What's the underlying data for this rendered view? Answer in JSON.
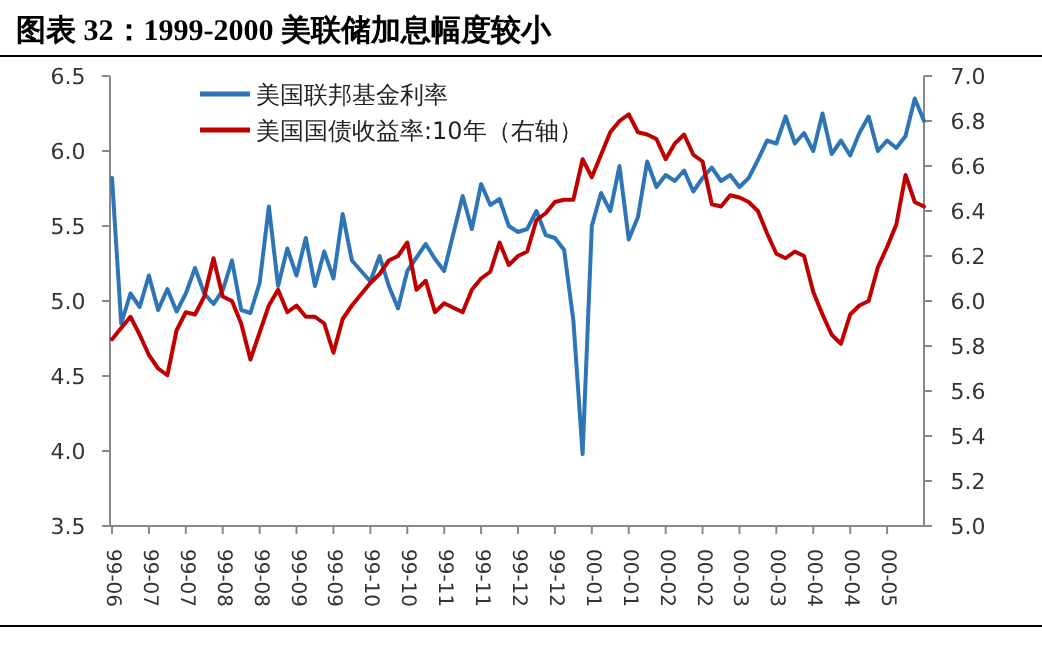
{
  "chart_data": {
    "type": "line",
    "title": "图表 32：1999-2000 美联储加息幅度较小",
    "categories": [
      "99-06",
      null,
      null,
      null,
      "99-07",
      null,
      null,
      null,
      "99-07",
      null,
      null,
      null,
      "99-08",
      null,
      null,
      null,
      "99-08",
      null,
      null,
      null,
      "99-09",
      null,
      null,
      null,
      "99-09",
      null,
      null,
      null,
      "99-10",
      null,
      null,
      null,
      "99-10",
      null,
      null,
      null,
      "99-11",
      null,
      null,
      null,
      "99-11",
      null,
      null,
      null,
      "99-12",
      null,
      null,
      null,
      "99-12",
      null,
      null,
      null,
      "00-01",
      null,
      null,
      null,
      "00-01",
      null,
      null,
      null,
      "00-02",
      null,
      null,
      null,
      "00-02",
      null,
      null,
      null,
      "00-03",
      null,
      null,
      null,
      "00-03",
      null,
      null,
      null,
      "00-04",
      null,
      null,
      null,
      "00-04",
      null,
      null,
      null,
      "00-05",
      null,
      null,
      null,
      null
    ],
    "series": [
      {
        "name": "美国联邦基金利率",
        "color": "#2e75b6",
        "values": [
          5.82,
          4.85,
          5.05,
          4.96,
          5.17,
          4.94,
          5.08,
          4.93,
          5.05,
          5.22,
          5.05,
          4.98,
          5.07,
          5.27,
          4.94,
          4.92,
          5.12,
          5.63,
          5.1,
          5.35,
          5.17,
          5.42,
          5.1,
          5.33,
          5.15,
          5.58,
          5.27,
          5.2,
          5.13,
          5.3,
          5.1,
          4.95,
          5.2,
          5.29,
          5.38,
          5.28,
          5.2,
          5.45,
          5.7,
          5.48,
          5.78,
          5.64,
          5.68,
          5.5,
          5.46,
          5.48,
          5.6,
          5.44,
          5.42,
          5.34,
          4.87,
          3.98,
          5.5,
          5.72,
          5.6,
          5.9,
          5.41,
          5.56,
          5.93,
          5.76,
          5.84,
          5.8,
          5.87,
          5.73,
          5.82,
          5.89,
          5.8,
          5.84,
          5.76,
          5.82,
          5.94,
          6.07,
          6.05,
          6.23,
          6.05,
          6.12,
          6.0,
          6.25,
          5.98,
          6.07,
          5.97,
          6.12,
          6.23,
          6.0,
          6.07,
          6.02,
          6.1,
          6.35,
          6.2
        ]
      },
      {
        "name": "美国国债收益率:10年（右轴）",
        "color": "#c00000",
        "axis": "y2",
        "values": [
          5.83,
          5.88,
          5.93,
          5.85,
          5.76,
          5.7,
          5.67,
          5.87,
          5.95,
          5.94,
          6.02,
          6.19,
          6.02,
          6.0,
          5.9,
          5.74,
          5.86,
          5.98,
          6.05,
          5.95,
          5.98,
          5.93,
          5.93,
          5.9,
          5.77,
          5.92,
          5.98,
          6.03,
          6.08,
          6.12,
          6.18,
          6.2,
          6.26,
          6.05,
          6.09,
          5.95,
          5.99,
          5.97,
          5.95,
          6.05,
          6.1,
          6.13,
          6.26,
          6.16,
          6.2,
          6.22,
          6.36,
          6.39,
          6.44,
          6.45,
          6.45,
          6.63,
          6.55,
          6.65,
          6.75,
          6.8,
          6.83,
          6.75,
          6.74,
          6.72,
          6.63,
          6.7,
          6.74,
          6.65,
          6.62,
          6.43,
          6.42,
          6.47,
          6.46,
          6.44,
          6.4,
          6.3,
          6.21,
          6.19,
          6.22,
          6.2,
          6.04,
          5.94,
          5.85,
          5.81,
          5.94,
          5.98,
          6.0,
          6.15,
          6.24,
          6.34,
          6.56,
          6.44,
          6.42
        ]
      }
    ],
    "ylim": [
      3.5,
      6.5
    ],
    "yticks": [
      {
        "value": 3.5,
        "label": "3.5"
      },
      {
        "value": 4,
        "label": "4.0"
      },
      {
        "value": 4.5,
        "label": "4.5"
      },
      {
        "value": 5,
        "label": "5.0"
      },
      {
        "value": 5.5,
        "label": "5.5"
      },
      {
        "value": 6,
        "label": "6.0"
      },
      {
        "value": 6.5,
        "label": "6.5"
      }
    ],
    "y2lim": [
      5.0,
      7.0
    ],
    "y2ticks": [
      {
        "value": 5,
        "label": "5.0"
      },
      {
        "value": 5.2,
        "label": "5.2"
      },
      {
        "value": 5.4,
        "label": "5.4"
      },
      {
        "value": 5.6,
        "label": "5.6"
      },
      {
        "value": 5.8,
        "label": "5.8"
      },
      {
        "value": 6,
        "label": "6.0"
      },
      {
        "value": 6.2,
        "label": "6.2"
      },
      {
        "value": 6.4,
        "label": "6.4"
      },
      {
        "value": 6.6,
        "label": "6.6"
      },
      {
        "value": 6.8,
        "label": "6.8"
      },
      {
        "value": 7,
        "label": "7.0"
      }
    ],
    "legend": "top",
    "grid": false,
    "marker": "none",
    "line_style": "solid"
  }
}
